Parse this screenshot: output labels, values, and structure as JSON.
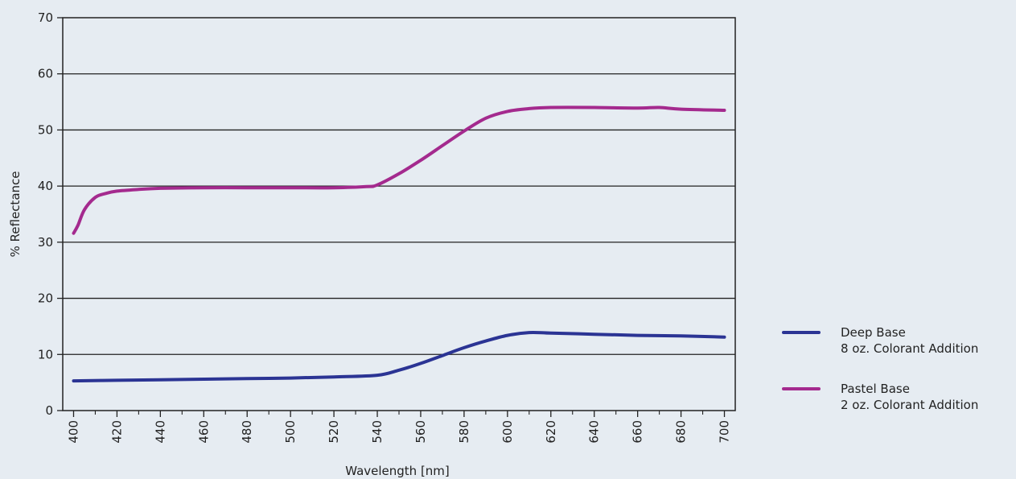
{
  "chart_data": {
    "type": "line",
    "title": "",
    "xlabel": "Wavelength [nm]",
    "ylabel": "% Reflectance",
    "xlim": [
      395,
      705
    ],
    "ylim": [
      0,
      70
    ],
    "xticks": [
      400,
      420,
      440,
      460,
      480,
      500,
      520,
      540,
      560,
      580,
      600,
      620,
      640,
      660,
      680,
      700
    ],
    "yticks": [
      0,
      10,
      20,
      30,
      40,
      50,
      60,
      70
    ],
    "grid": "horizontal",
    "legend_position": "right",
    "series": [
      {
        "name": "Deep Base",
        "subtitle": "8 oz. Colorant Addition",
        "color": "#2b3494",
        "x": [
          400,
          420,
          440,
          460,
          480,
          500,
          520,
          540,
          550,
          560,
          570,
          580,
          590,
          600,
          610,
          620,
          640,
          660,
          680,
          700
        ],
        "y": [
          5.3,
          5.4,
          5.5,
          5.6,
          5.7,
          5.8,
          6.0,
          6.3,
          7.2,
          8.4,
          9.8,
          11.2,
          12.4,
          13.4,
          13.9,
          13.8,
          13.6,
          13.4,
          13.3,
          13.1
        ]
      },
      {
        "name": "Pastel Base",
        "subtitle": "2 oz. Colorant Addition",
        "color": "#a42a8e",
        "x": [
          400,
          402,
          405,
          410,
          415,
          420,
          430,
          440,
          460,
          480,
          500,
          520,
          535,
          540,
          550,
          560,
          570,
          580,
          590,
          600,
          610,
          620,
          640,
          660,
          670,
          680,
          700
        ],
        "y": [
          31.6,
          33.0,
          35.8,
          38.0,
          38.7,
          39.1,
          39.4,
          39.6,
          39.7,
          39.7,
          39.7,
          39.7,
          39.9,
          40.2,
          42.2,
          44.6,
          47.2,
          49.8,
          52.1,
          53.3,
          53.8,
          54.0,
          54.0,
          53.9,
          54.0,
          53.7,
          53.5
        ]
      }
    ]
  }
}
